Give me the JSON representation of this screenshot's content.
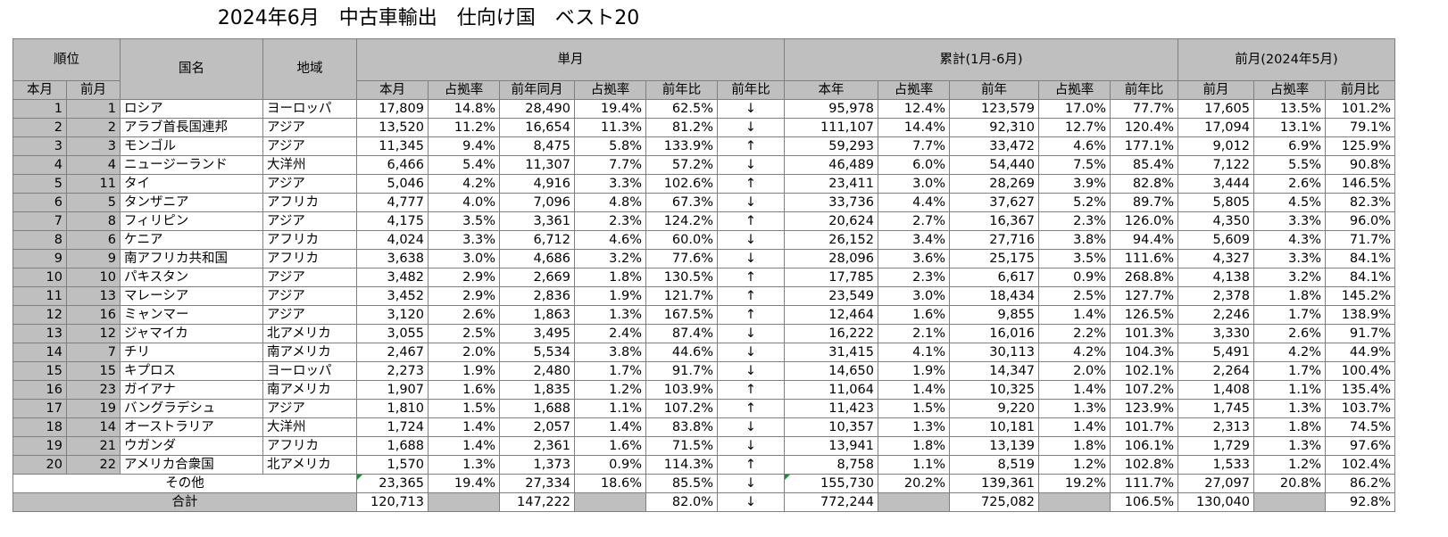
{
  "title": "2024年6月　中古車輸出　仕向け国　ベスト20",
  "headers": {
    "rank": "順位",
    "country": "国名",
    "region": "地域",
    "monthly": "単月",
    "cumulative": "累計(1月-6月)",
    "prev_month_group": "前月(2024年5月)",
    "rank_cur": "本月",
    "rank_prev": "前月",
    "m_cur": "本月",
    "m_share": "占拠率",
    "m_prev_year": "前年同月",
    "m_share2": "占拠率",
    "m_yoy": "前年比",
    "m_yoy2": "前年比",
    "c_cur": "本年",
    "c_share": "占拠率",
    "c_prev": "前年",
    "c_share2": "占拠率",
    "c_yoy": "前年比",
    "p_prev": "前月",
    "p_share": "占拠率",
    "p_mom": "前月比"
  },
  "rows": [
    {
      "rank": "1",
      "prev_rank": "1",
      "country": "ロシア",
      "region": "ヨーロッパ",
      "m_cur": "17,809",
      "m_share": "14.8%",
      "m_prev": "28,490",
      "m_share2": "19.4%",
      "m_yoy": "62.5%",
      "m_arrow": "↓",
      "c_cur": "95,978",
      "c_share": "12.4%",
      "c_prev": "123,579",
      "c_share2": "17.0%",
      "c_yoy": "77.7%",
      "p_prev": "17,605",
      "p_share": "13.5%",
      "p_mom": "101.2%"
    },
    {
      "rank": "2",
      "prev_rank": "2",
      "country": "アラブ首長国連邦",
      "region": "アジア",
      "m_cur": "13,520",
      "m_share": "11.2%",
      "m_prev": "16,654",
      "m_share2": "11.3%",
      "m_yoy": "81.2%",
      "m_arrow": "↓",
      "c_cur": "111,107",
      "c_share": "14.4%",
      "c_prev": "92,310",
      "c_share2": "12.7%",
      "c_yoy": "120.4%",
      "p_prev": "17,094",
      "p_share": "13.1%",
      "p_mom": "79.1%"
    },
    {
      "rank": "3",
      "prev_rank": "3",
      "country": "モンゴル",
      "region": "アジア",
      "m_cur": "11,345",
      "m_share": "9.4%",
      "m_prev": "8,475",
      "m_share2": "5.8%",
      "m_yoy": "133.9%",
      "m_arrow": "↑",
      "c_cur": "59,293",
      "c_share": "7.7%",
      "c_prev": "33,472",
      "c_share2": "4.6%",
      "c_yoy": "177.1%",
      "p_prev": "9,012",
      "p_share": "6.9%",
      "p_mom": "125.9%"
    },
    {
      "rank": "4",
      "prev_rank": "4",
      "country": "ニュージーランド",
      "region": "大洋州",
      "m_cur": "6,466",
      "m_share": "5.4%",
      "m_prev": "11,307",
      "m_share2": "7.7%",
      "m_yoy": "57.2%",
      "m_arrow": "↓",
      "c_cur": "46,489",
      "c_share": "6.0%",
      "c_prev": "54,440",
      "c_share2": "7.5%",
      "c_yoy": "85.4%",
      "p_prev": "7,122",
      "p_share": "5.5%",
      "p_mom": "90.8%"
    },
    {
      "rank": "5",
      "prev_rank": "11",
      "country": "タイ",
      "region": "アジア",
      "m_cur": "5,046",
      "m_share": "4.2%",
      "m_prev": "4,916",
      "m_share2": "3.3%",
      "m_yoy": "102.6%",
      "m_arrow": "↑",
      "c_cur": "23,411",
      "c_share": "3.0%",
      "c_prev": "28,269",
      "c_share2": "3.9%",
      "c_yoy": "82.8%",
      "p_prev": "3,444",
      "p_share": "2.6%",
      "p_mom": "146.5%"
    },
    {
      "rank": "6",
      "prev_rank": "5",
      "country": "タンザニア",
      "region": "アフリカ",
      "m_cur": "4,777",
      "m_share": "4.0%",
      "m_prev": "7,096",
      "m_share2": "4.8%",
      "m_yoy": "67.3%",
      "m_arrow": "↓",
      "c_cur": "33,736",
      "c_share": "4.4%",
      "c_prev": "37,627",
      "c_share2": "5.2%",
      "c_yoy": "89.7%",
      "p_prev": "5,805",
      "p_share": "4.5%",
      "p_mom": "82.3%"
    },
    {
      "rank": "7",
      "prev_rank": "8",
      "country": "フィリピン",
      "region": "アジア",
      "m_cur": "4,175",
      "m_share": "3.5%",
      "m_prev": "3,361",
      "m_share2": "2.3%",
      "m_yoy": "124.2%",
      "m_arrow": "↑",
      "c_cur": "20,624",
      "c_share": "2.7%",
      "c_prev": "16,367",
      "c_share2": "2.3%",
      "c_yoy": "126.0%",
      "p_prev": "4,350",
      "p_share": "3.3%",
      "p_mom": "96.0%"
    },
    {
      "rank": "8",
      "prev_rank": "6",
      "country": "ケニア",
      "region": "アフリカ",
      "m_cur": "4,024",
      "m_share": "3.3%",
      "m_prev": "6,712",
      "m_share2": "4.6%",
      "m_yoy": "60.0%",
      "m_arrow": "↓",
      "c_cur": "26,152",
      "c_share": "3.4%",
      "c_prev": "27,716",
      "c_share2": "3.8%",
      "c_yoy": "94.4%",
      "p_prev": "5,609",
      "p_share": "4.3%",
      "p_mom": "71.7%"
    },
    {
      "rank": "9",
      "prev_rank": "9",
      "country": "南アフリカ共和国",
      "region": "アフリカ",
      "m_cur": "3,638",
      "m_share": "3.0%",
      "m_prev": "4,686",
      "m_share2": "3.2%",
      "m_yoy": "77.6%",
      "m_arrow": "↓",
      "c_cur": "28,096",
      "c_share": "3.6%",
      "c_prev": "25,175",
      "c_share2": "3.5%",
      "c_yoy": "111.6%",
      "p_prev": "4,327",
      "p_share": "3.3%",
      "p_mom": "84.1%"
    },
    {
      "rank": "10",
      "prev_rank": "10",
      "country": "パキスタン",
      "region": "アジア",
      "m_cur": "3,482",
      "m_share": "2.9%",
      "m_prev": "2,669",
      "m_share2": "1.8%",
      "m_yoy": "130.5%",
      "m_arrow": "↑",
      "c_cur": "17,785",
      "c_share": "2.3%",
      "c_prev": "6,617",
      "c_share2": "0.9%",
      "c_yoy": "268.8%",
      "p_prev": "4,138",
      "p_share": "3.2%",
      "p_mom": "84.1%"
    },
    {
      "rank": "11",
      "prev_rank": "13",
      "country": "マレーシア",
      "region": "アジア",
      "m_cur": "3,452",
      "m_share": "2.9%",
      "m_prev": "2,836",
      "m_share2": "1.9%",
      "m_yoy": "121.7%",
      "m_arrow": "↑",
      "c_cur": "23,549",
      "c_share": "3.0%",
      "c_prev": "18,434",
      "c_share2": "2.5%",
      "c_yoy": "127.7%",
      "p_prev": "2,378",
      "p_share": "1.8%",
      "p_mom": "145.2%"
    },
    {
      "rank": "12",
      "prev_rank": "16",
      "country": "ミャンマー",
      "region": "アジア",
      "m_cur": "3,120",
      "m_share": "2.6%",
      "m_prev": "1,863",
      "m_share2": "1.3%",
      "m_yoy": "167.5%",
      "m_arrow": "↑",
      "c_cur": "12,464",
      "c_share": "1.6%",
      "c_prev": "9,855",
      "c_share2": "1.4%",
      "c_yoy": "126.5%",
      "p_prev": "2,246",
      "p_share": "1.7%",
      "p_mom": "138.9%"
    },
    {
      "rank": "13",
      "prev_rank": "12",
      "country": "ジャマイカ",
      "region": "北アメリカ",
      "m_cur": "3,055",
      "m_share": "2.5%",
      "m_prev": "3,495",
      "m_share2": "2.4%",
      "m_yoy": "87.4%",
      "m_arrow": "↓",
      "c_cur": "16,222",
      "c_share": "2.1%",
      "c_prev": "16,016",
      "c_share2": "2.2%",
      "c_yoy": "101.3%",
      "p_prev": "3,330",
      "p_share": "2.6%",
      "p_mom": "91.7%"
    },
    {
      "rank": "14",
      "prev_rank": "7",
      "country": "チリ",
      "region": "南アメリカ",
      "m_cur": "2,467",
      "m_share": "2.0%",
      "m_prev": "5,534",
      "m_share2": "3.8%",
      "m_yoy": "44.6%",
      "m_arrow": "↓",
      "c_cur": "31,415",
      "c_share": "4.1%",
      "c_prev": "30,113",
      "c_share2": "4.2%",
      "c_yoy": "104.3%",
      "p_prev": "5,491",
      "p_share": "4.2%",
      "p_mom": "44.9%"
    },
    {
      "rank": "15",
      "prev_rank": "15",
      "country": "キプロス",
      "region": "ヨーロッパ",
      "m_cur": "2,273",
      "m_share": "1.9%",
      "m_prev": "2,480",
      "m_share2": "1.7%",
      "m_yoy": "91.7%",
      "m_arrow": "↓",
      "c_cur": "14,650",
      "c_share": "1.9%",
      "c_prev": "14,347",
      "c_share2": "2.0%",
      "c_yoy": "102.1%",
      "p_prev": "2,264",
      "p_share": "1.7%",
      "p_mom": "100.4%"
    },
    {
      "rank": "16",
      "prev_rank": "23",
      "country": "ガイアナ",
      "region": "南アメリカ",
      "m_cur": "1,907",
      "m_share": "1.6%",
      "m_prev": "1,835",
      "m_share2": "1.2%",
      "m_yoy": "103.9%",
      "m_arrow": "↑",
      "c_cur": "11,064",
      "c_share": "1.4%",
      "c_prev": "10,325",
      "c_share2": "1.4%",
      "c_yoy": "107.2%",
      "p_prev": "1,408",
      "p_share": "1.1%",
      "p_mom": "135.4%"
    },
    {
      "rank": "17",
      "prev_rank": "19",
      "country": "バングラデシュ",
      "region": "アジア",
      "m_cur": "1,810",
      "m_share": "1.5%",
      "m_prev": "1,688",
      "m_share2": "1.1%",
      "m_yoy": "107.2%",
      "m_arrow": "↑",
      "c_cur": "11,423",
      "c_share": "1.5%",
      "c_prev": "9,220",
      "c_share2": "1.3%",
      "c_yoy": "123.9%",
      "p_prev": "1,745",
      "p_share": "1.3%",
      "p_mom": "103.7%"
    },
    {
      "rank": "18",
      "prev_rank": "14",
      "country": "オーストラリア",
      "region": "大洋州",
      "m_cur": "1,724",
      "m_share": "1.4%",
      "m_prev": "2,057",
      "m_share2": "1.4%",
      "m_yoy": "83.8%",
      "m_arrow": "↓",
      "c_cur": "10,357",
      "c_share": "1.3%",
      "c_prev": "10,181",
      "c_share2": "1.4%",
      "c_yoy": "101.7%",
      "p_prev": "2,313",
      "p_share": "1.8%",
      "p_mom": "74.5%"
    },
    {
      "rank": "19",
      "prev_rank": "21",
      "country": "ウガンダ",
      "region": "アフリカ",
      "m_cur": "1,688",
      "m_share": "1.4%",
      "m_prev": "2,361",
      "m_share2": "1.6%",
      "m_yoy": "71.5%",
      "m_arrow": "↓",
      "c_cur": "13,941",
      "c_share": "1.8%",
      "c_prev": "13,139",
      "c_share2": "1.8%",
      "c_yoy": "106.1%",
      "p_prev": "1,729",
      "p_share": "1.3%",
      "p_mom": "97.6%"
    },
    {
      "rank": "20",
      "prev_rank": "22",
      "country": "アメリカ合衆国",
      "region": "北アメリカ",
      "m_cur": "1,570",
      "m_share": "1.3%",
      "m_prev": "1,373",
      "m_share2": "0.9%",
      "m_yoy": "114.3%",
      "m_arrow": "↑",
      "c_cur": "8,758",
      "c_share": "1.1%",
      "c_prev": "8,519",
      "c_share2": "1.2%",
      "c_yoy": "102.8%",
      "p_prev": "1,533",
      "p_share": "1.2%",
      "p_mom": "102.4%"
    }
  ],
  "others": {
    "label": "その他",
    "m_cur": "23,365",
    "m_share": "19.4%",
    "m_prev": "27,334",
    "m_share2": "18.6%",
    "m_yoy": "85.5%",
    "m_arrow": "↓",
    "c_cur": "155,730",
    "c_share": "20.2%",
    "c_prev": "139,361",
    "c_share2": "19.2%",
    "c_yoy": "111.7%",
    "p_prev": "27,097",
    "p_share": "20.8%",
    "p_mom": "86.2%"
  },
  "total": {
    "label": "合計",
    "m_cur": "120,713",
    "m_prev": "147,222",
    "m_yoy": "82.0%",
    "m_arrow": "↓",
    "c_cur": "772,244",
    "c_prev": "725,082",
    "c_yoy": "106.5%",
    "p_prev": "130,040",
    "p_mom": "92.8%"
  }
}
